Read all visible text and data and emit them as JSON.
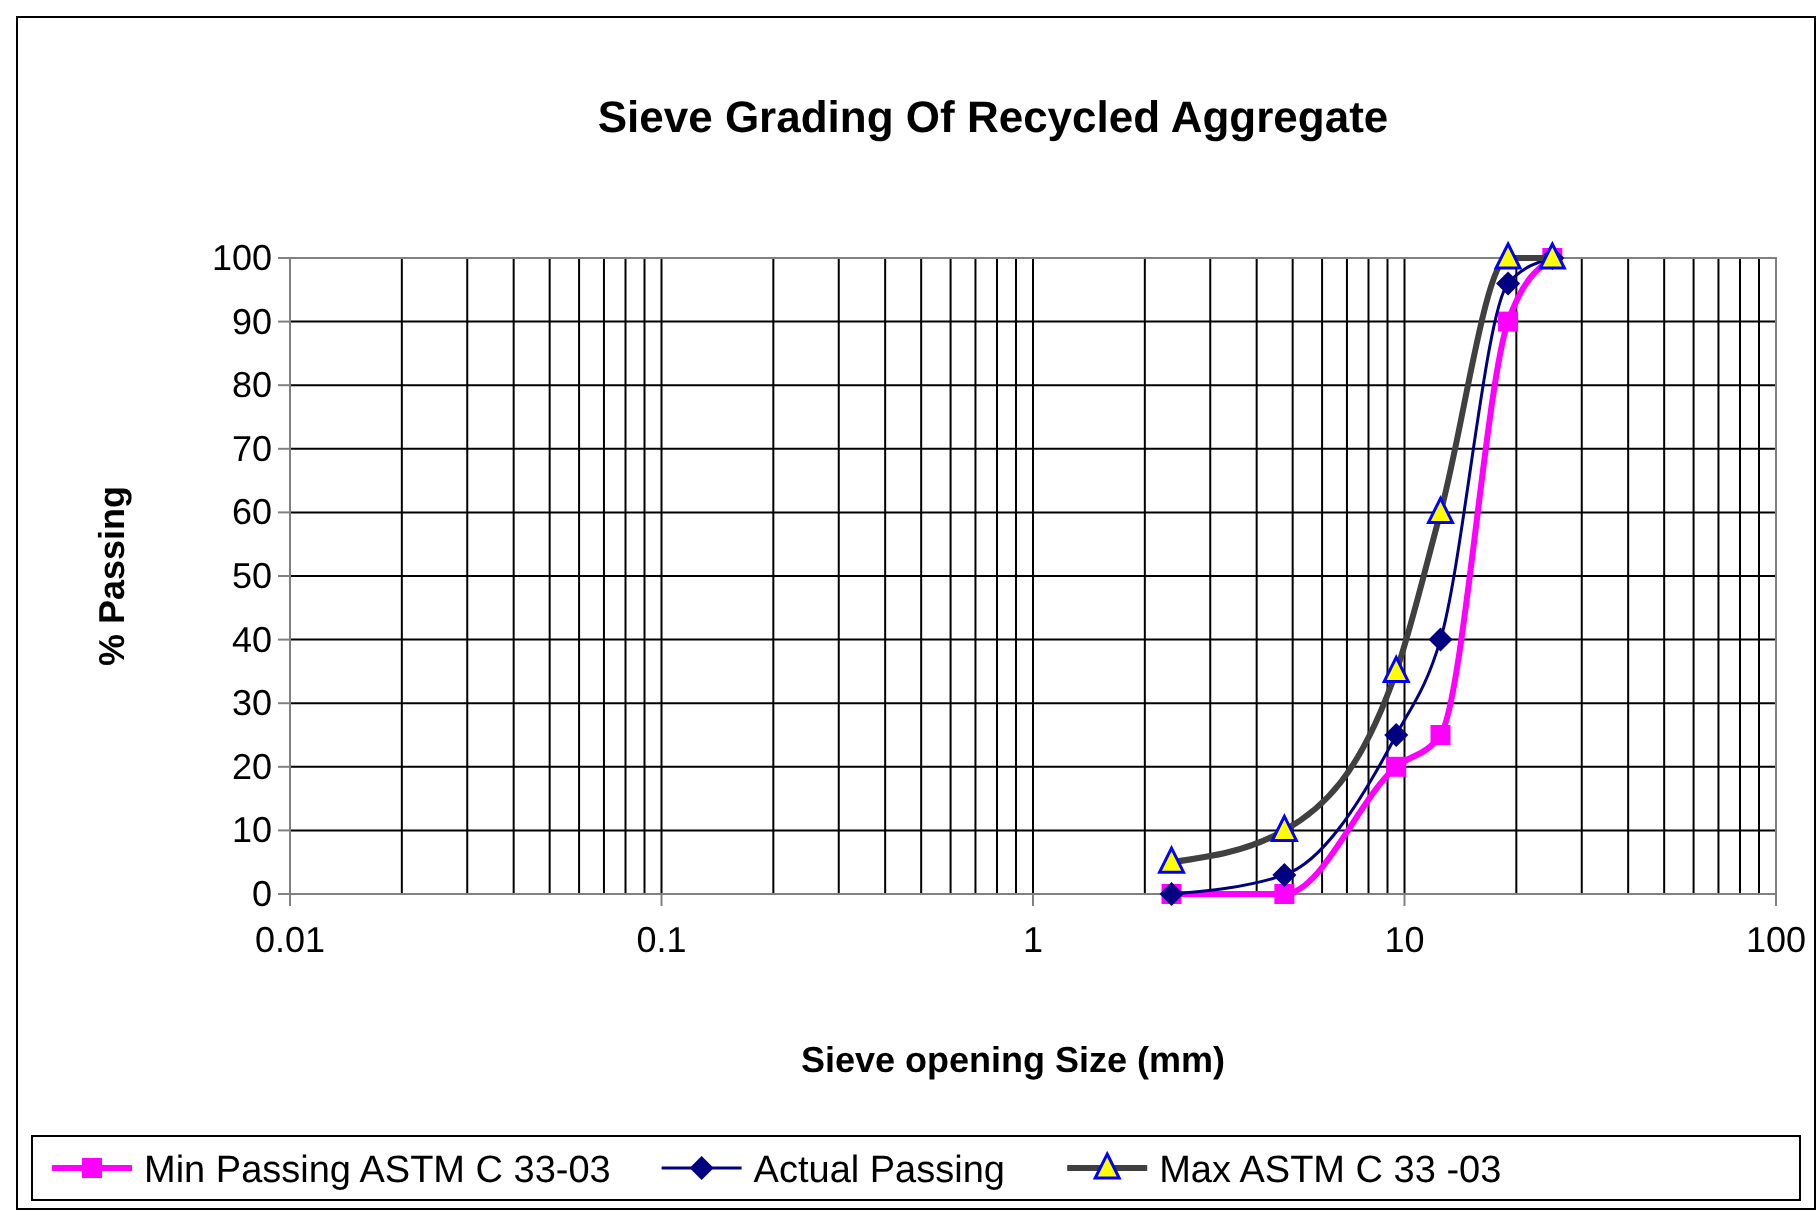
{
  "chart_data": {
    "type": "line",
    "title": "Sieve Grading Of Recycled Aggregate",
    "xlabel": "Sieve opening Size (mm)",
    "ylabel": "% Passing",
    "x": [
      2.36,
      4.75,
      9.5,
      12.5,
      19,
      25
    ],
    "series": [
      {
        "name": "Min Passing ASTM C 33-03",
        "color": "#ff00ff",
        "marker": "square",
        "values": [
          0,
          0,
          20,
          25,
          90,
          100
        ]
      },
      {
        "name": "Actual Passing",
        "color": "#000080",
        "marker": "diamond",
        "values": [
          0,
          3,
          25,
          40,
          96,
          100
        ]
      },
      {
        "name": "Max ASTM C 33 -03",
        "color": "#404040",
        "marker": "triangle",
        "values": [
          5,
          10,
          35,
          60,
          100,
          100
        ]
      }
    ],
    "log": "x",
    "xlim": [
      0.01,
      100
    ],
    "xticks": [
      0.01,
      0.1,
      1,
      10,
      100
    ],
    "ylim": [
      0,
      100
    ],
    "yticks": [
      0,
      10,
      20,
      30,
      40,
      50,
      60,
      70,
      80,
      90,
      100
    ],
    "grid": true,
    "legend": "bottom"
  }
}
